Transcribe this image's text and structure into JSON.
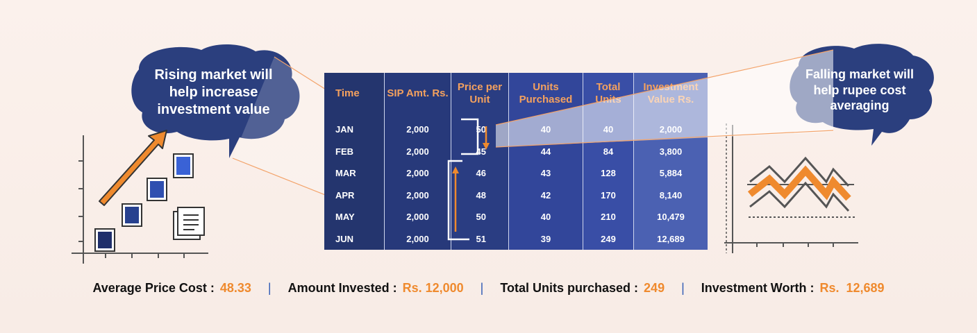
{
  "bubbles": {
    "left": "Rising market will help increase investment value",
    "right": "Falling market will help rupee cost averaging"
  },
  "table": {
    "headers": [
      "Time",
      "SIP Amt. Rs.",
      "Price per Unit",
      "Units Purchased",
      "Total Units",
      "Investment Value Rs."
    ],
    "rows": [
      [
        "JAN",
        "2,000",
        "50",
        "40",
        "40",
        "2,000"
      ],
      [
        "FEB",
        "2,000",
        "45",
        "44",
        "84",
        "3,800"
      ],
      [
        "MAR",
        "2,000",
        "46",
        "43",
        "128",
        "5,884"
      ],
      [
        "APR",
        "2,000",
        "48",
        "42",
        "170",
        "8,140"
      ],
      [
        "MAY",
        "2,000",
        "50",
        "40",
        "210",
        "10,479"
      ],
      [
        "JUN",
        "2,000",
        "51",
        "39",
        "249",
        "12,689"
      ]
    ]
  },
  "summary": {
    "avg_label": "Average Price Cost :",
    "avg_value": "48.33",
    "amount_label": "Amount Invested :",
    "amount_value": "Rs. 12,000",
    "units_label": "Total Units purchased :",
    "units_value": "249",
    "worth_label": "Investment Worth :",
    "worth_value": "Rs.  12,689",
    "separator": "|"
  },
  "colors": {
    "navy": "#24356e",
    "orange": "#ef8a2e",
    "header_orange": "#f4a15e",
    "background": "#fbf1ec"
  },
  "icons": [
    "rising-chart-icon",
    "document-icon",
    "falling-market-chart-icon",
    "speech-bubble-icon"
  ]
}
